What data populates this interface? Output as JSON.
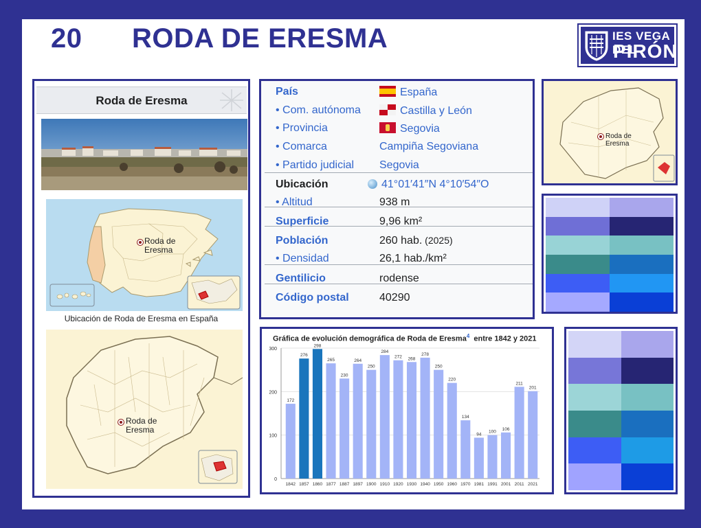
{
  "slide": {
    "number": "20",
    "title": "RODA DE ERESMA",
    "logo_line1": "IES VEGA DEL",
    "logo_line2": "PIRÓN",
    "logo_crest_text": "IES VEGA DEL PIRON"
  },
  "infobox": {
    "header": "Roda de Eresma",
    "map_label": "Roda de\nEresma",
    "map_caption": "Ubicación de Roda de Eresma en España",
    "province_map_label": "Roda de\nEresma",
    "rows": [
      {
        "key": "País",
        "value": "España",
        "flag": "spain"
      },
      {
        "key": "• Com. autónoma",
        "value": "Castilla y León",
        "flag": "cyl"
      },
      {
        "key": "• Provincia",
        "value": "Segovia",
        "flag": "segovia"
      },
      {
        "key": "• Comarca",
        "value": "Campiña Segoviana"
      },
      {
        "key": "• Partido judicial",
        "value": "Segovia"
      },
      {
        "key": "Ubicación",
        "value": "41°01′41″N 4°10′54″O"
      },
      {
        "key": "• Altitud",
        "value": "938 m"
      },
      {
        "key": "Superficie",
        "value": "9,96 km²"
      },
      {
        "key": "Población",
        "value": "260 hab.",
        "extra": "(2025)"
      },
      {
        "key": "• Densidad",
        "value": "26,1 hab./km²"
      },
      {
        "key": "Gentilicio",
        "value": "rodense"
      },
      {
        "key": "Código postal",
        "value": "40290"
      }
    ]
  },
  "small_map": {
    "label": "Roda de\nEresma"
  },
  "chart_data": {
    "type": "bar",
    "title": "Gráfica de evolución demográfica de Roda de Eresma",
    "title_sup": "4",
    "title_suffix": "entre 1842 y 2021",
    "categories": [
      "1842",
      "1857",
      "1860",
      "1877",
      "1887",
      "1897",
      "1900",
      "1910",
      "1920",
      "1930",
      "1940",
      "1950",
      "1960",
      "1970",
      "1981",
      "1991",
      "2001",
      "2011",
      "2021"
    ],
    "values": [
      172,
      276,
      298,
      265,
      230,
      264,
      250,
      284,
      272,
      268,
      278,
      250,
      220,
      134,
      94,
      100,
      106,
      211,
      201
    ],
    "highlight": [
      1,
      2
    ],
    "ylim": [
      0,
      300
    ],
    "yticks": [
      0,
      100,
      200,
      300
    ],
    "bar_color": "#a3b4f7",
    "highlight_color": "#1a75bc",
    "grid": true
  },
  "palettes": {
    "palette1": [
      "#cfd2f7",
      "#a9a6ec",
      "#6f6fd6",
      "#262573",
      "#98d3d6",
      "#78c1c3",
      "#3a8b8a",
      "#1a6fbf",
      "#3d5df5",
      "#2196f3",
      "#a5a9ff",
      "#0a3fd6"
    ],
    "palette2": [
      "#d3d5f7",
      "#a9a6ec",
      "#7776d8",
      "#262573",
      "#9cd5d7",
      "#78c1c3",
      "#3a8b8a",
      "#1a6fbf",
      "#3d5df5",
      "#1e9be6",
      "#a0a3ff",
      "#0a3fd6"
    ]
  }
}
